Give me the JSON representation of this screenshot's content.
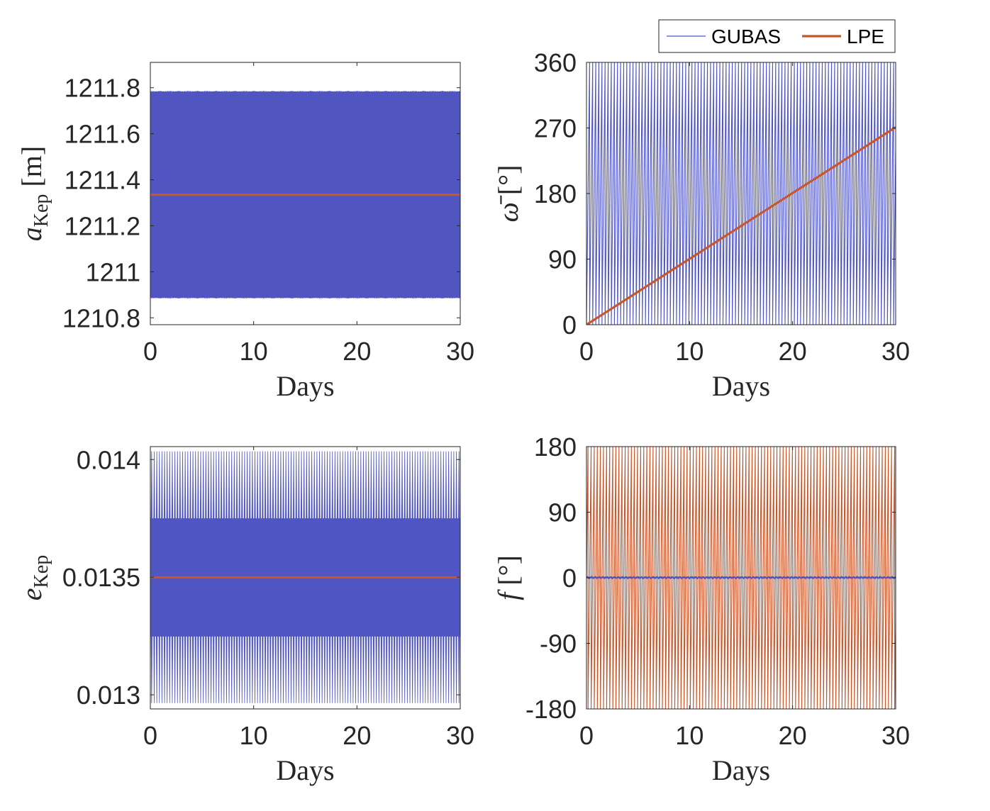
{
  "legend": {
    "placement": "top-right, above top-right panel",
    "entries": [
      {
        "name": "GUBAS",
        "color": "#4f55c3",
        "style": "thin line"
      },
      {
        "name": "LPE",
        "color": "#c8562a",
        "style": "thick line"
      }
    ]
  },
  "chart_data": [
    {
      "type": "line",
      "panel": "top-left",
      "xlabel": "Days",
      "ylabel": {
        "main": "a",
        "sub": "Kep",
        "unit": "[m]"
      },
      "xlim": [
        0,
        30
      ],
      "ylim": [
        1210.77,
        1211.91
      ],
      "x_ticks": [
        0,
        10,
        20,
        30
      ],
      "y_ticks": [
        1210.8,
        1211,
        1211.2,
        1211.4,
        1211.6,
        1211.8
      ],
      "y_tick_labels": [
        "1210.8",
        "1211",
        "1211.2",
        "1211.4",
        "1211.6",
        "1211.8"
      ],
      "grid": false,
      "series": [
        {
          "name": "GUBAS",
          "kind": "dense-oscillation",
          "center": 1211.335,
          "amplitude": 0.45,
          "fill_color": "#5055c2",
          "edge_ripple": 0.006,
          "cycles": 60
        },
        {
          "name": "LPE",
          "kind": "constant",
          "x": [
            0,
            30
          ],
          "y": [
            1211.335,
            1211.335
          ]
        }
      ]
    },
    {
      "type": "line",
      "panel": "top-right",
      "xlabel": "Days",
      "ylabel": {
        "main": "ω̄",
        "unit": "[°]"
      },
      "xlim": [
        0,
        30
      ],
      "ylim": [
        0,
        360
      ],
      "x_ticks": [
        0,
        10,
        20,
        30
      ],
      "y_ticks": [
        0,
        90,
        180,
        270,
        360
      ],
      "y_tick_labels": [
        "0",
        "90",
        "180",
        "270",
        "360"
      ],
      "grid": false,
      "series": [
        {
          "name": "GUBAS",
          "kind": "sawtooth-wrap",
          "rate_deg_per_day": 1196.0,
          "start": 0,
          "wrap": [
            0,
            360
          ]
        },
        {
          "name": "LPE",
          "kind": "linear",
          "x": [
            0,
            30
          ],
          "y": [
            0,
            271
          ]
        }
      ]
    },
    {
      "type": "line",
      "panel": "bottom-left",
      "xlabel": "Days",
      "ylabel": {
        "main": "e",
        "sub": "Kep",
        "unit": ""
      },
      "xlim": [
        0,
        30
      ],
      "ylim": [
        0.01294,
        0.014055
      ],
      "x_ticks": [
        0,
        10,
        20,
        30
      ],
      "y_ticks": [
        0.013,
        0.0135,
        0.014
      ],
      "y_tick_labels": [
        "0.013",
        "0.0135",
        "0.014"
      ],
      "grid": false,
      "series": [
        {
          "name": "GUBAS",
          "kind": "dense-oscillation-spiky",
          "center": 0.013499,
          "band_half": 0.00025,
          "spike_min": 0.012965,
          "spike_max": 0.014035,
          "fill_color": "#4f55c3",
          "cycles": 60
        },
        {
          "name": "LPE",
          "kind": "constant",
          "x": [
            0,
            30
          ],
          "y": [
            0.013499,
            0.013499
          ]
        }
      ]
    },
    {
      "type": "line",
      "panel": "bottom-right",
      "xlabel": "Days",
      "ylabel": {
        "main": "f",
        "unit": "[°]"
      },
      "xlim": [
        0,
        30
      ],
      "ylim": [
        -180,
        180
      ],
      "x_ticks": [
        0,
        10,
        20,
        30
      ],
      "y_ticks": [
        -180,
        -90,
        0,
        90,
        180
      ],
      "y_tick_labels": [
        "-180",
        "-90",
        "0",
        "90",
        "180"
      ],
      "grid": false,
      "series": [
        {
          "name": "LPE",
          "kind": "sawtooth-wrap",
          "rate_deg_per_day": 1198.0,
          "start": 0,
          "wrap": [
            -180,
            180
          ]
        },
        {
          "name": "GUBAS",
          "kind": "near-constant",
          "center": 0.3,
          "amplitude": 0.8
        }
      ]
    }
  ]
}
